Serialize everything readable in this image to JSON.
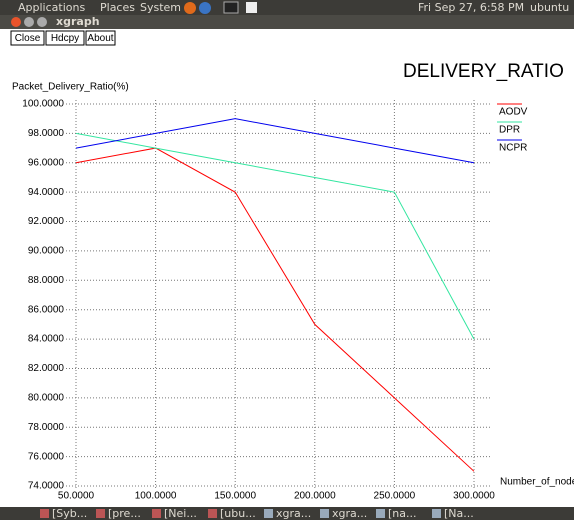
{
  "top_panel": {
    "menus": [
      "Applications",
      "Places",
      "System"
    ],
    "clock": "Fri Sep 27,  6:58 PM",
    "user": "ubuntu"
  },
  "window": {
    "title": "xgraph",
    "buttons": [
      "Close",
      "Hdcpy",
      "About"
    ]
  },
  "chart_data": {
    "type": "line",
    "title": "DELIVERY_RATIO",
    "y_label": "Packet_Delivery_Ratio(%)",
    "x_label": "Number_of_node",
    "x": [
      50,
      100,
      150,
      200,
      250,
      300
    ],
    "series": [
      {
        "name": "AODV",
        "color": "#ff0000",
        "values": [
          96,
          97,
          94,
          85,
          80,
          75
        ]
      },
      {
        "name": "DPR",
        "color": "#33e6a0",
        "values": [
          98,
          97,
          96,
          95,
          94,
          84
        ]
      },
      {
        "name": "NCPR",
        "color": "#0000ee",
        "values": [
          97,
          98,
          99,
          98,
          97,
          96
        ]
      }
    ],
    "xlim": [
      50,
      300
    ],
    "xticks": [
      {
        "value": 50,
        "label": "50.0000"
      },
      {
        "value": 100,
        "label": "100.0000"
      },
      {
        "value": 150,
        "label": "150.0000"
      },
      {
        "value": 200,
        "label": "200.0000"
      },
      {
        "value": 250,
        "label": "250.0000"
      },
      {
        "value": 300,
        "label": "300.0000"
      }
    ],
    "ylim": [
      74,
      100
    ],
    "yticks": [
      {
        "value": 74,
        "label": "74.0000"
      },
      {
        "value": 76,
        "label": "76.0000"
      },
      {
        "value": 78,
        "label": "78.0000"
      },
      {
        "value": 80,
        "label": "80.0000"
      },
      {
        "value": 82,
        "label": "82.0000"
      },
      {
        "value": 84,
        "label": "84.0000"
      },
      {
        "value": 86,
        "label": "86.0000"
      },
      {
        "value": 88,
        "label": "88.0000"
      },
      {
        "value": 90,
        "label": "90.0000"
      },
      {
        "value": 92,
        "label": "92.0000"
      },
      {
        "value": 94,
        "label": "94.0000"
      },
      {
        "value": 96,
        "label": "96.0000"
      },
      {
        "value": 98,
        "label": "98.0000"
      },
      {
        "value": 100,
        "label": "100.0000"
      }
    ],
    "grid": true,
    "legend": "right"
  },
  "taskbar": {
    "items": [
      "[Syb...",
      "[pre...",
      "[Nei...",
      "[ubu...",
      "xgra...",
      "xgra...",
      "[na...",
      "[Na..."
    ]
  }
}
